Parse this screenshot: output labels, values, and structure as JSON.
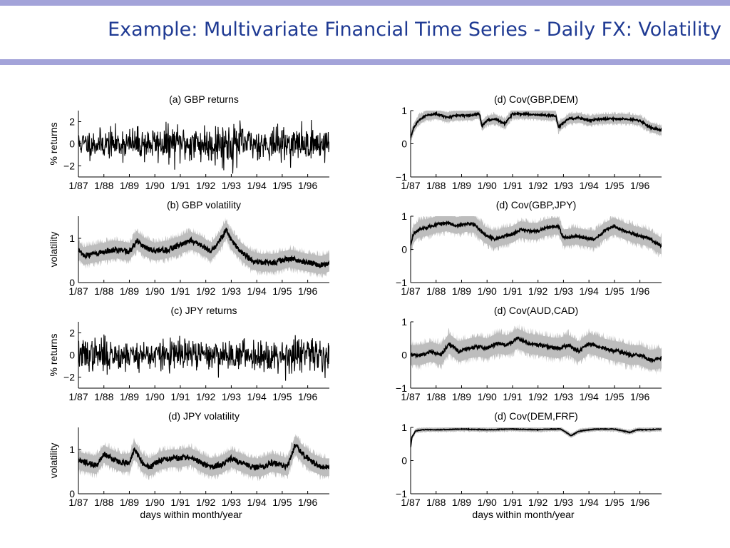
{
  "slide": {
    "title": "Example: Multivariate Financial Time Series - Daily FX: Volatility"
  },
  "chart_data": [
    {
      "type": "line",
      "kind": "returns",
      "title": "(a) GBP returns",
      "ylabel": "% returns",
      "xlabel": "",
      "ylim": [
        -3,
        3
      ],
      "yticks": [
        {
          "v": 2,
          "label": "2"
        },
        {
          "v": 0,
          "label": "0"
        },
        {
          "v": -2,
          "label": "−2"
        }
      ],
      "xticks": [
        "1/87",
        "1/88",
        "1/89",
        "1/90",
        "1/91",
        "1/92",
        "1/93",
        "1/94",
        "1/95",
        "1/96"
      ],
      "xlim": [
        1987.0,
        1996.85
      ],
      "seed": 11,
      "spread": 0.8,
      "noise_scale": 0.85,
      "series": [
        {
          "x": [
            1987.0,
            1988.5,
            1990.0,
            1991.0,
            1992.5,
            1993.0,
            1994.0,
            1996.85
          ],
          "y": [
            0.7,
            0.8,
            0.9,
            1.0,
            1.1,
            1.2,
            0.8,
            0.9
          ]
        }
      ]
    },
    {
      "type": "line",
      "kind": "volatility",
      "title": "(b) GBP volatility",
      "ylabel": "volatility",
      "xlabel": "",
      "ylim": [
        0,
        1.5
      ],
      "yticks": [
        {
          "v": 1,
          "label": "1"
        },
        {
          "v": 0,
          "label": "0"
        }
      ],
      "xticks": [
        "1/87",
        "1/88",
        "1/89",
        "1/90",
        "1/91",
        "1/92",
        "1/93",
        "1/94",
        "1/95",
        "1/96"
      ],
      "xlim": [
        1987.0,
        1996.85
      ],
      "seed": 23,
      "spread": 0.2,
      "noise_scale": 0.06,
      "series": [
        {
          "x": [
            1987.0,
            1987.2,
            1987.6,
            1988.0,
            1988.5,
            1989.0,
            1989.3,
            1989.6,
            1990.0,
            1990.5,
            1991.0,
            1991.4,
            1991.8,
            1992.2,
            1992.5,
            1992.8,
            1993.0,
            1993.4,
            1993.8,
            1994.2,
            1994.7,
            1995.0,
            1995.3,
            1995.6,
            1996.0,
            1996.5,
            1996.85
          ],
          "y": [
            0.75,
            0.6,
            0.65,
            0.7,
            0.75,
            0.7,
            0.95,
            0.8,
            0.7,
            0.75,
            0.85,
            0.95,
            0.85,
            0.7,
            0.9,
            1.2,
            0.95,
            0.7,
            0.5,
            0.45,
            0.45,
            0.5,
            0.55,
            0.5,
            0.45,
            0.4,
            0.45
          ]
        }
      ]
    },
    {
      "type": "line",
      "kind": "returns",
      "title": "(c) JPY returns",
      "ylabel": "% returns",
      "xlabel": "",
      "ylim": [
        -3,
        3
      ],
      "yticks": [
        {
          "v": 2,
          "label": "2"
        },
        {
          "v": 0,
          "label": "0"
        },
        {
          "v": -2,
          "label": "−2"
        }
      ],
      "xticks": [
        "1/87",
        "1/88",
        "1/89",
        "1/90",
        "1/91",
        "1/92",
        "1/93",
        "1/94",
        "1/95",
        "1/96"
      ],
      "xlim": [
        1987.0,
        1996.85
      ],
      "seed": 37,
      "spread": 0.8,
      "noise_scale": 0.85,
      "series": [
        {
          "x": [
            1987.0,
            1988.0,
            1989.0,
            1990.0,
            1991.0,
            1992.0,
            1993.0,
            1994.0,
            1995.0,
            1995.5,
            1996.0,
            1996.85
          ],
          "y": [
            0.8,
            0.9,
            0.8,
            0.8,
            0.85,
            0.75,
            0.8,
            0.75,
            0.9,
            1.2,
            0.8,
            0.85
          ]
        }
      ]
    },
    {
      "type": "line",
      "kind": "volatility",
      "title": "(d) JPY volatility",
      "ylabel": "volatility",
      "xlabel": "days within month/year",
      "ylim": [
        0,
        1.5
      ],
      "yticks": [
        {
          "v": 1,
          "label": "1"
        },
        {
          "v": 0,
          "label": "0"
        }
      ],
      "xticks": [
        "1/87",
        "1/88",
        "1/89",
        "1/90",
        "1/91",
        "1/92",
        "1/93",
        "1/94",
        "1/95",
        "1/96"
      ],
      "xlim": [
        1987.0,
        1996.85
      ],
      "seed": 41,
      "spread": 0.2,
      "noise_scale": 0.06,
      "series": [
        {
          "x": [
            1987.0,
            1987.3,
            1987.7,
            1988.0,
            1988.3,
            1988.7,
            1989.0,
            1989.2,
            1989.5,
            1989.8,
            1990.2,
            1990.6,
            1991.0,
            1991.4,
            1991.8,
            1992.2,
            1992.6,
            1993.0,
            1993.4,
            1993.8,
            1994.2,
            1994.6,
            1995.0,
            1995.2,
            1995.5,
            1995.8,
            1996.2,
            1996.6,
            1996.85
          ],
          "y": [
            0.75,
            0.7,
            0.65,
            0.9,
            0.8,
            0.7,
            0.7,
            1.0,
            0.7,
            0.6,
            0.75,
            0.8,
            0.8,
            0.85,
            0.7,
            0.6,
            0.65,
            0.8,
            0.7,
            0.6,
            0.6,
            0.7,
            0.65,
            0.6,
            1.1,
            0.9,
            0.7,
            0.6,
            0.6
          ]
        }
      ]
    },
    {
      "type": "line",
      "kind": "covariance",
      "title": "(d) Cov(GBP,DEM)",
      "ylabel": "",
      "xlabel": "",
      "ylim": [
        -1,
        1
      ],
      "yticks": [
        {
          "v": 1,
          "label": "1"
        },
        {
          "v": 0,
          "label": "0"
        },
        {
          "v": -1,
          "label": "−1"
        }
      ],
      "xticks": [
        "1/87",
        "1/88",
        "1/89",
        "1/90",
        "1/91",
        "1/92",
        "1/93",
        "1/94",
        "1/95",
        "1/96"
      ],
      "xlim": [
        1987.0,
        1996.85
      ],
      "seed": 53,
      "spread": 0.14,
      "noise_scale": 0.03,
      "series": [
        {
          "x": [
            1987.0,
            1987.1,
            1987.3,
            1987.6,
            1988.0,
            1988.4,
            1988.8,
            1989.2,
            1989.7,
            1989.8,
            1990.0,
            1990.3,
            1990.7,
            1991.0,
            1991.5,
            1992.0,
            1992.5,
            1992.7,
            1992.8,
            1993.2,
            1993.6,
            1994.0,
            1994.5,
            1995.0,
            1995.5,
            1996.0,
            1996.4,
            1996.85
          ],
          "y": [
            0.2,
            0.45,
            0.7,
            0.85,
            0.9,
            0.8,
            0.85,
            0.85,
            0.9,
            0.55,
            0.7,
            0.75,
            0.6,
            0.9,
            0.9,
            0.88,
            0.85,
            0.85,
            0.5,
            0.75,
            0.78,
            0.7,
            0.75,
            0.75,
            0.75,
            0.7,
            0.5,
            0.4
          ]
        }
      ]
    },
    {
      "type": "line",
      "kind": "covariance",
      "title": "(d) Cov(GBP,JPY)",
      "ylabel": "",
      "xlabel": "",
      "ylim": [
        -1,
        1
      ],
      "yticks": [
        {
          "v": 1,
          "label": "1"
        },
        {
          "v": 0,
          "label": "0"
        },
        {
          "v": -1,
          "label": "−1"
        }
      ],
      "xticks": [
        "1/87",
        "1/88",
        "1/89",
        "1/90",
        "1/91",
        "1/92",
        "1/93",
        "1/94",
        "1/95",
        "1/96"
      ],
      "xlim": [
        1987.0,
        1996.85
      ],
      "seed": 67,
      "spread": 0.25,
      "noise_scale": 0.04,
      "series": [
        {
          "x": [
            1987.0,
            1987.1,
            1987.3,
            1987.6,
            1988.0,
            1988.4,
            1988.8,
            1989.2,
            1989.5,
            1989.9,
            1990.3,
            1990.7,
            1991.0,
            1991.3,
            1991.7,
            1992.0,
            1992.3,
            1992.6,
            1992.8,
            1993.0,
            1993.5,
            1993.8,
            1994.2,
            1994.6,
            1995.0,
            1995.4,
            1995.8,
            1996.3,
            1996.85
          ],
          "y": [
            0.1,
            0.45,
            0.6,
            0.65,
            0.75,
            0.8,
            0.72,
            0.78,
            0.75,
            0.45,
            0.3,
            0.4,
            0.45,
            0.6,
            0.55,
            0.55,
            0.65,
            0.7,
            0.7,
            0.35,
            0.4,
            0.35,
            0.3,
            0.55,
            0.7,
            0.55,
            0.45,
            0.35,
            0.1
          ]
        }
      ]
    },
    {
      "type": "line",
      "kind": "covariance",
      "title": "(d) Cov(AUD,CAD)",
      "ylabel": "",
      "xlabel": "",
      "ylim": [
        -1,
        1
      ],
      "yticks": [
        {
          "v": 1,
          "label": "1"
        },
        {
          "v": 0,
          "label": "0"
        },
        {
          "v": -1,
          "label": "−1"
        }
      ],
      "xticks": [
        "1/87",
        "1/88",
        "1/89",
        "1/90",
        "1/91",
        "1/92",
        "1/93",
        "1/94",
        "1/95",
        "1/96"
      ],
      "xlim": [
        1987.0,
        1996.85
      ],
      "seed": 79,
      "spread": 0.3,
      "noise_scale": 0.05,
      "series": [
        {
          "x": [
            1987.0,
            1987.4,
            1987.8,
            1988.2,
            1988.5,
            1988.9,
            1989.3,
            1989.7,
            1990.0,
            1990.4,
            1990.8,
            1991.2,
            1991.6,
            1992.0,
            1992.4,
            1992.8,
            1993.2,
            1993.6,
            1994.0,
            1994.4,
            1994.8,
            1995.2,
            1995.6,
            1996.0,
            1996.4,
            1996.85
          ],
          "y": [
            0.0,
            0.0,
            0.1,
            0.0,
            0.35,
            0.1,
            0.2,
            0.25,
            0.2,
            0.35,
            0.3,
            0.5,
            0.35,
            0.3,
            0.25,
            0.2,
            0.3,
            0.1,
            0.35,
            0.25,
            0.15,
            0.1,
            0.0,
            0.0,
            -0.15,
            -0.1
          ]
        }
      ]
    },
    {
      "type": "line",
      "kind": "covariance",
      "title": "(d) Cov(DEM,FRF)",
      "ylabel": "",
      "xlabel": "days within month/year",
      "ylim": [
        -1,
        1
      ],
      "yticks": [
        {
          "v": 1,
          "label": "1"
        },
        {
          "v": 0,
          "label": "0"
        },
        {
          "v": -1,
          "label": "−1"
        }
      ],
      "xticks": [
        "1/87",
        "1/88",
        "1/89",
        "1/90",
        "1/91",
        "1/92",
        "1/93",
        "1/94",
        "1/95",
        "1/96"
      ],
      "xlim": [
        1987.0,
        1996.85
      ],
      "seed": 83,
      "spread": 0.06,
      "noise_scale": 0.01,
      "series": [
        {
          "x": [
            1987.0,
            1987.05,
            1987.2,
            1987.5,
            1988.0,
            1989.0,
            1990.0,
            1991.0,
            1992.0,
            1992.5,
            1992.9,
            1993.3,
            1993.6,
            1993.9,
            1994.3,
            1995.0,
            1995.6,
            1995.9,
            1996.3,
            1996.85
          ],
          "y": [
            0.4,
            0.7,
            0.9,
            0.93,
            0.93,
            0.95,
            0.93,
            0.95,
            0.93,
            0.95,
            0.95,
            0.75,
            0.88,
            0.92,
            0.95,
            0.95,
            0.85,
            0.93,
            0.93,
            0.95
          ]
        }
      ]
    }
  ]
}
